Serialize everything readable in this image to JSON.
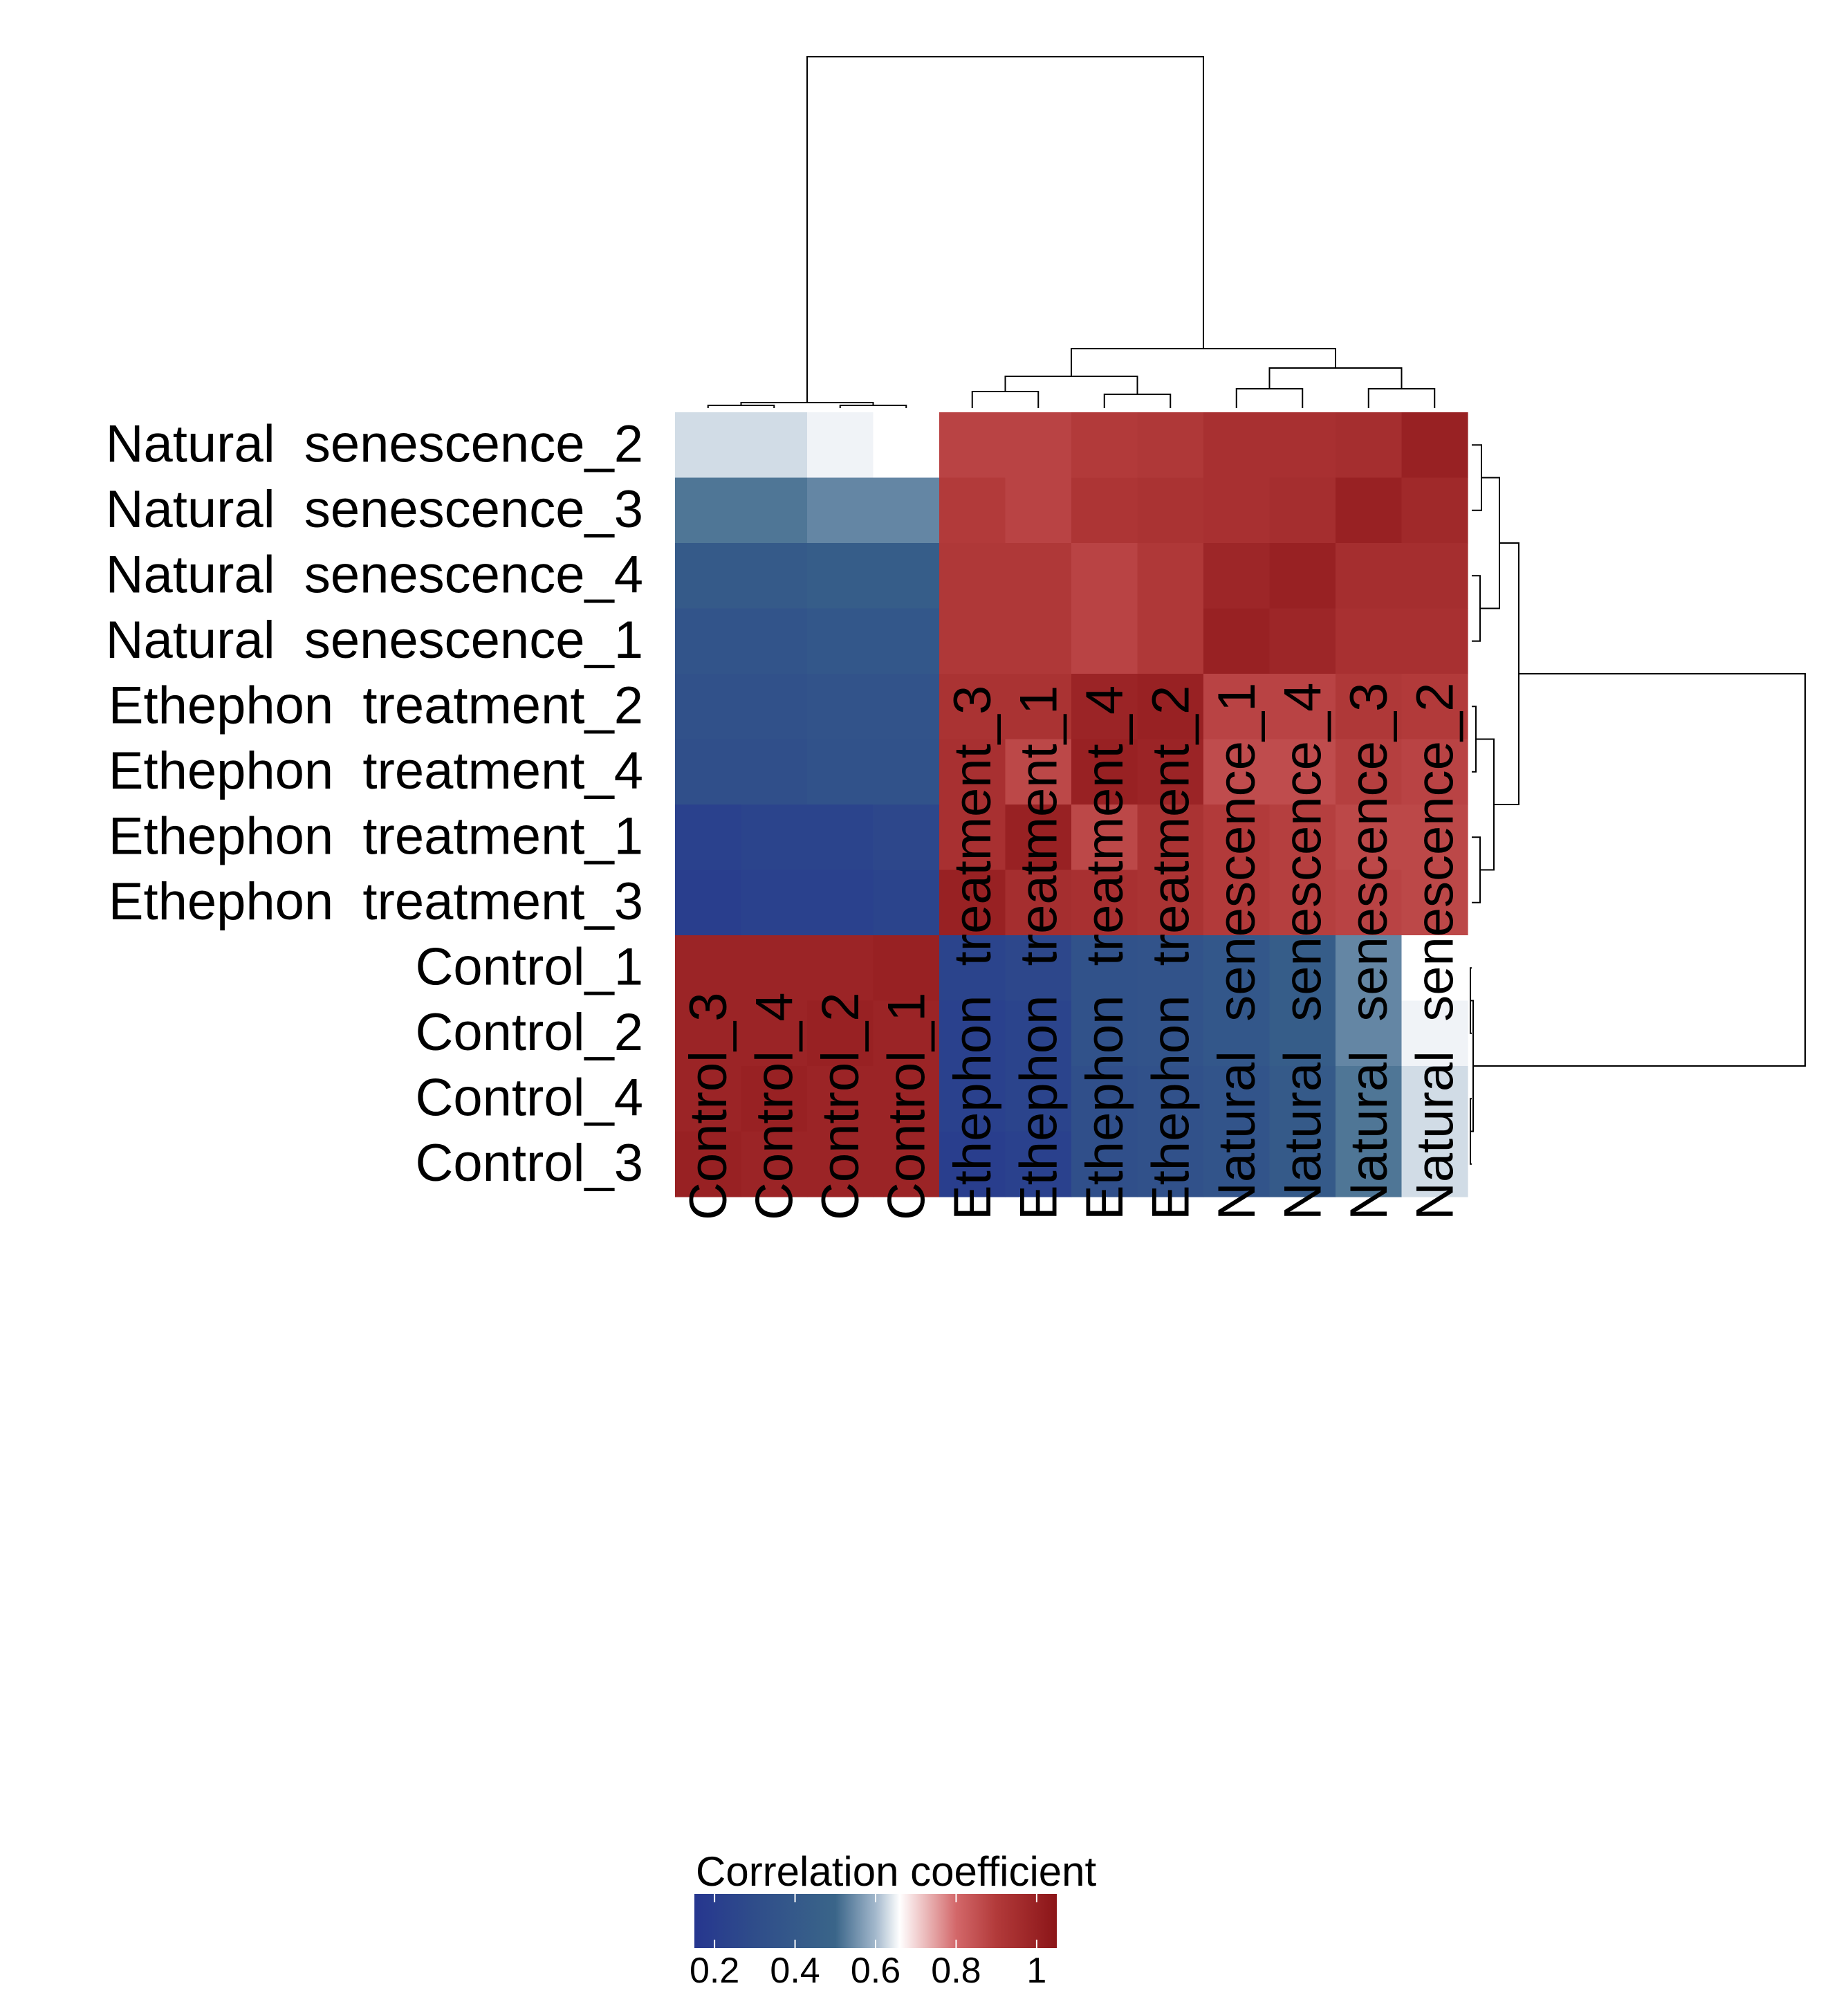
{
  "chart_data": {
    "type": "heatmap",
    "title": "",
    "xlabel": "",
    "ylabel": "",
    "rows": [
      "Natural  senescence_2",
      "Natural  senescence_3",
      "Natural  senescence_4",
      "Natural  senescence_1",
      "Ethephon  treatment_2",
      "Ethephon  treatment_4",
      "Ethephon  treatment_1",
      "Ethephon  treatment_3",
      "Control_1",
      "Control_2",
      "Control_4",
      "Control_3"
    ],
    "columns": [
      "Control_3",
      "Control_4",
      "Control_2",
      "Control_1",
      "Ethephon  treatment_3",
      "Ethephon  treatment_1",
      "Ethephon  treatment_4",
      "Ethephon  treatment_2",
      "Natural  senescence_1",
      "Natural  senescence_4",
      "Natural  senescence_3",
      "Natural  senescence_2"
    ],
    "values": [
      [
        0.63,
        0.63,
        0.65,
        0.66,
        0.88,
        0.88,
        0.9,
        0.91,
        0.94,
        0.94,
        0.95,
        1.0
      ],
      [
        0.52,
        0.52,
        0.54,
        0.54,
        0.9,
        0.88,
        0.92,
        0.93,
        0.94,
        0.95,
        1.0,
        0.97
      ],
      [
        0.41,
        0.41,
        0.43,
        0.43,
        0.91,
        0.91,
        0.88,
        0.91,
        0.98,
        1.0,
        0.95,
        0.95
      ],
      [
        0.36,
        0.36,
        0.38,
        0.38,
        0.91,
        0.91,
        0.88,
        0.91,
        1.0,
        0.98,
        0.94,
        0.94
      ],
      [
        0.33,
        0.33,
        0.35,
        0.35,
        0.93,
        0.93,
        0.99,
        1.0,
        0.88,
        0.88,
        0.91,
        0.9
      ],
      [
        0.32,
        0.32,
        0.34,
        0.34,
        0.94,
        0.87,
        1.0,
        0.99,
        0.86,
        0.86,
        0.89,
        0.88
      ],
      [
        0.22,
        0.24,
        0.24,
        0.26,
        0.94,
        1.0,
        0.87,
        0.93,
        0.9,
        0.89,
        0.87,
        0.87
      ],
      [
        0.2,
        0.22,
        0.22,
        0.24,
        1.0,
        0.95,
        0.94,
        0.93,
        0.9,
        0.89,
        0.88,
        0.87
      ],
      [
        0.99,
        0.99,
        0.99,
        1.0,
        0.24,
        0.26,
        0.34,
        0.35,
        0.38,
        0.43,
        0.54,
        0.66
      ],
      [
        0.99,
        0.99,
        1.0,
        0.99,
        0.22,
        0.24,
        0.34,
        0.35,
        0.38,
        0.43,
        0.54,
        0.65
      ],
      [
        0.99,
        1.0,
        0.99,
        0.99,
        0.22,
        0.24,
        0.32,
        0.33,
        0.36,
        0.41,
        0.52,
        0.63
      ],
      [
        1.0,
        0.99,
        0.99,
        0.99,
        0.2,
        0.22,
        0.32,
        0.33,
        0.36,
        0.41,
        0.52,
        0.63
      ]
    ],
    "color_scale": {
      "title": "Correlation coefficient",
      "min": 0.15,
      "max": 1.05,
      "stops": [
        {
          "value": 0.15,
          "color": "#26368f"
        },
        {
          "value": 0.3,
          "color": "#2f4d8a"
        },
        {
          "value": 0.5,
          "color": "#3a6589"
        },
        {
          "value": 0.6,
          "color": "#a3b8cc"
        },
        {
          "value": 0.66,
          "color": "#ffffff"
        },
        {
          "value": 0.8,
          "color": "#d3686a"
        },
        {
          "value": 0.9,
          "color": "#b23a3a"
        },
        {
          "value": 1.05,
          "color": "#8b1518"
        }
      ],
      "ticks": [
        0.2,
        0.4,
        0.6,
        0.8,
        1
      ],
      "tick_labels": [
        "0.2",
        "0.4",
        "0.6",
        "0.8",
        "1"
      ]
    },
    "column_dendrogram": true,
    "row_dendrogram": true,
    "grid": false
  }
}
